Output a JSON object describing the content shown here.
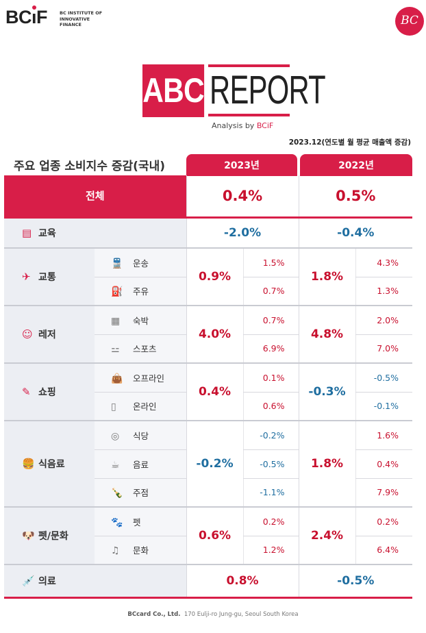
{
  "header": {
    "logo": "BCiF",
    "institute": "BC INSTITUTE OF INNOVATIVE FINANCE",
    "bc_logo": "BC"
  },
  "report": {
    "abc": "ABC",
    "report": "REPORT",
    "analysis_prefix": "Analysis by ",
    "analysis_brand": "BCiF"
  },
  "date_note": "2023.12(연도별 월 평균 매출액 증감)",
  "table_title": "주요 업종 소비지수 증감(국내)",
  "columns": [
    "2023년",
    "2022년"
  ],
  "total": {
    "label": "전체",
    "y2023": "0.4%",
    "y2022": "0.5%"
  },
  "rows": [
    {
      "label": "교육",
      "icon": "book-icon",
      "y2023": "-2.0%",
      "y2022": "-0.4%",
      "subs": []
    },
    {
      "label": "교통",
      "icon": "airplane-icon",
      "y2023": "0.9%",
      "y2022": "1.8%",
      "subs": [
        {
          "label": "운송",
          "icon": "train-icon",
          "y2023": "1.5%",
          "y2022": "4.3%"
        },
        {
          "label": "주유",
          "icon": "fuel-pump-icon",
          "y2023": "0.7%",
          "y2022": "1.3%"
        }
      ]
    },
    {
      "label": "레저",
      "icon": "smiley-icon",
      "y2023": "4.0%",
      "y2022": "4.8%",
      "subs": [
        {
          "label": "숙박",
          "icon": "hotel-icon",
          "y2023": "0.7%",
          "y2022": "2.0%"
        },
        {
          "label": "스포츠",
          "icon": "dumbbell-icon",
          "y2023": "6.9%",
          "y2022": "7.0%"
        }
      ]
    },
    {
      "label": "쇼핑",
      "icon": "card-payment-icon",
      "y2023": "0.4%",
      "y2022": "-0.3%",
      "subs": [
        {
          "label": "오프라인",
          "icon": "shopping-bag-icon",
          "y2023": "0.1%",
          "y2022": "-0.5%"
        },
        {
          "label": "온라인",
          "icon": "mobile-shop-icon",
          "y2023": "0.6%",
          "y2022": "-0.1%"
        }
      ]
    },
    {
      "label": "식음료",
      "icon": "burger-drink-icon",
      "y2023": "-0.2%",
      "y2022": "1.8%",
      "subs": [
        {
          "label": "식당",
          "icon": "plate-icon",
          "y2023": "-0.2%",
          "y2022": "1.6%"
        },
        {
          "label": "음료",
          "icon": "coffee-cup-icon",
          "y2023": "-0.5%",
          "y2022": "0.4%"
        },
        {
          "label": "주점",
          "icon": "champagne-bucket-icon",
          "y2023": "-1.1%",
          "y2022": "7.9%"
        }
      ]
    },
    {
      "label": "펫/문화",
      "icon": "dog-icon",
      "y2023": "0.6%",
      "y2022": "2.4%",
      "subs": [
        {
          "label": "펫",
          "icon": "paw-icon",
          "y2023": "0.2%",
          "y2022": "0.2%"
        },
        {
          "label": "문화",
          "icon": "music-icon",
          "y2023": "1.2%",
          "y2022": "6.4%"
        }
      ]
    },
    {
      "label": "의료",
      "icon": "syringe-icon",
      "y2023": "0.8%",
      "y2022": "-0.5%",
      "subs": []
    }
  ],
  "footer": {
    "company": "BCcard Co., Ltd.",
    "address": "170 Eulji-ro Jung-gu, Seoul South Korea"
  },
  "colors": {
    "accent": "#d81e48",
    "positive": "#c8102e",
    "negative": "#1f6ea0"
  }
}
